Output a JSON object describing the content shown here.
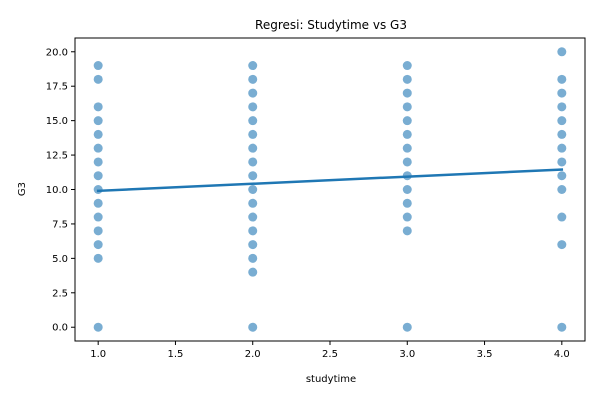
{
  "chart_data": {
    "type": "scatter",
    "title": "Regresi: Studytime vs G3",
    "xlabel": "studytime",
    "ylabel": "G3",
    "xlim": [
      0.85,
      4.15
    ],
    "ylim": [
      -1.0,
      21.0
    ],
    "xticks": [
      1.0,
      1.5,
      2.0,
      2.5,
      3.0,
      3.5,
      4.0
    ],
    "xtick_labels": [
      "1.0",
      "1.5",
      "2.0",
      "2.5",
      "3.0",
      "3.5",
      "4.0"
    ],
    "yticks": [
      0,
      2.5,
      5,
      7.5,
      10,
      12.5,
      15,
      17.5,
      20
    ],
    "ytick_labels": [
      "0.0",
      "2.5",
      "5.0",
      "7.5",
      "10.0",
      "12.5",
      "15.0",
      "17.5",
      "20.0"
    ],
    "grid": false,
    "legend": "none",
    "point_color": "#1f77b4",
    "line_color": "#1f77b4",
    "groups": [
      {
        "x": 1,
        "y": [
          0,
          5,
          6,
          7,
          8,
          9,
          10,
          11,
          12,
          13,
          14,
          15,
          16,
          18,
          19
        ]
      },
      {
        "x": 2,
        "y": [
          0,
          4,
          5,
          6,
          7,
          8,
          9,
          10,
          11,
          12,
          13,
          14,
          15,
          16,
          17,
          18,
          19
        ]
      },
      {
        "x": 3,
        "y": [
          0,
          7,
          8,
          9,
          10,
          11,
          12,
          13,
          14,
          15,
          16,
          17,
          18,
          19
        ]
      },
      {
        "x": 4,
        "y": [
          0,
          6,
          8,
          10,
          11,
          12,
          13,
          14,
          15,
          16,
          17,
          18,
          20
        ]
      }
    ],
    "regression": {
      "x": [
        1,
        4
      ],
      "y": [
        9.9,
        11.45
      ]
    }
  }
}
